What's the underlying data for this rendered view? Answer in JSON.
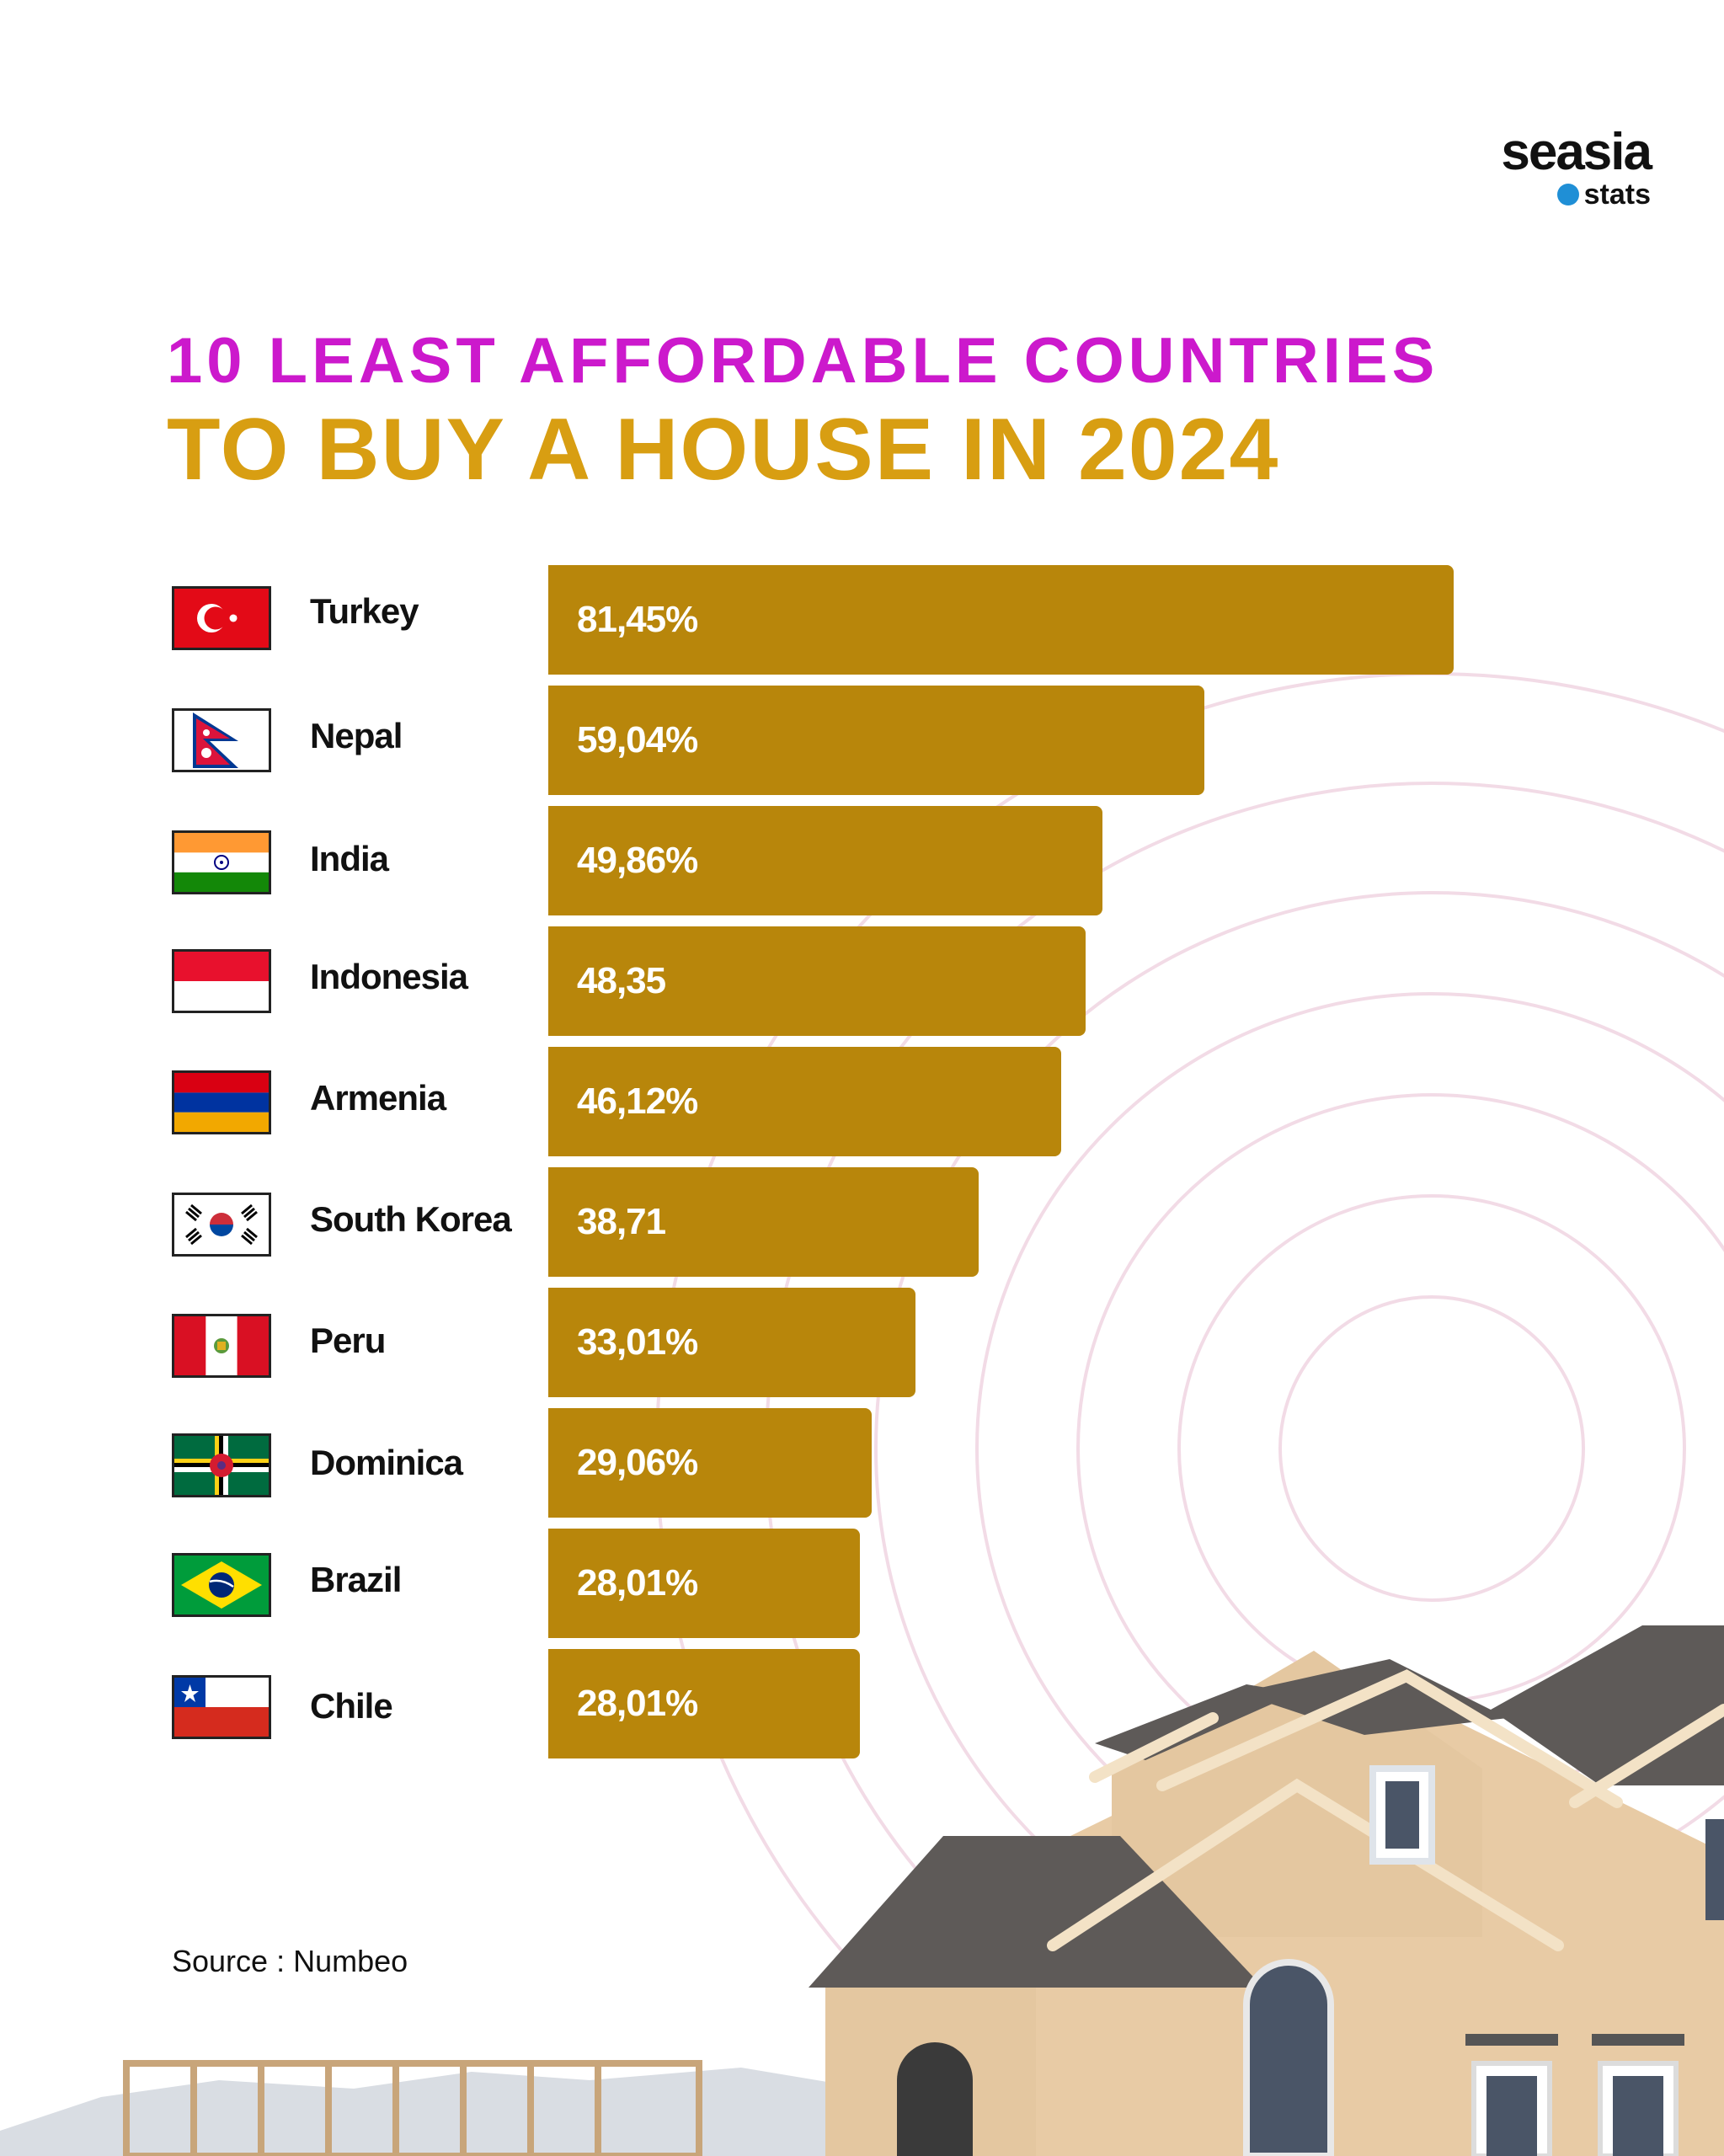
{
  "brand": {
    "name": "seasia",
    "sub": "stats",
    "dot_color": "#1f8fd6"
  },
  "title": {
    "line1": "10 LEAST AFFORDABLE COUNTRIES",
    "line2": "TO BUY A HOUSE IN 2024"
  },
  "colors": {
    "title1": "#cc19cc",
    "title2": "#d89e12",
    "bar": "#b8860b",
    "bar_text": "#ffffff"
  },
  "chart_data": {
    "type": "bar",
    "orientation": "horizontal",
    "title": "10 LEAST AFFORDABLE COUNTRIES TO BUY A HOUSE IN 2024",
    "categories": [
      "Turkey",
      "Nepal",
      "India",
      "Indonesia",
      "Armenia",
      "South Korea",
      "Peru",
      "Dominica",
      "Brazil",
      "Chile"
    ],
    "values": [
      81.45,
      59.04,
      49.86,
      48.35,
      46.12,
      38.71,
      33.01,
      29.06,
      28.01,
      28.01
    ],
    "labels": [
      "81,45%",
      "59,04%",
      "49,86%",
      "48,35",
      "46,12%",
      "38,71",
      "33,01%",
      "29,06%",
      "28,01%",
      "28,01%"
    ],
    "flags": [
      "turkey-flag",
      "nepal-flag",
      "india-flag",
      "indonesia-flag",
      "armenia-flag",
      "south-korea-flag",
      "peru-flag",
      "dominica-flag",
      "brazil-flag",
      "chile-flag"
    ],
    "xlim": [
      0,
      81.45
    ],
    "xlabel": "",
    "ylabel": "",
    "grid": false
  },
  "source": "Source : Numbeo"
}
